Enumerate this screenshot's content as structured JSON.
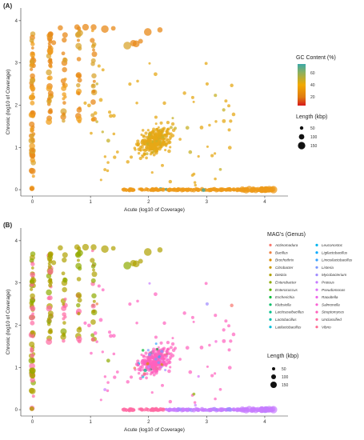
{
  "panels": [
    {
      "label": "(A)",
      "legend_color_title": "GC Content (%)",
      "legend_color_ticks": [
        "60",
        "40",
        "20"
      ],
      "legend_size_title": "Length (kbp)",
      "legend_size_ticks": [
        "50",
        "100",
        "150"
      ]
    },
    {
      "label": "(B)",
      "legend_color_title": "MAG's (Genus)",
      "legend_size_title": "Length (kbp)",
      "legend_size_ticks": [
        "50",
        "100",
        "150"
      ],
      "genera": [
        {
          "name": "Actinomadura",
          "color": "#F8766D"
        },
        {
          "name": "Bacillus",
          "color": "#EE8042"
        },
        {
          "name": "Brochothrix",
          "color": "#DE8C00"
        },
        {
          "name": "Citrobacter",
          "color": "#C99800"
        },
        {
          "name": "Dietzia",
          "color": "#AFA100"
        },
        {
          "name": "Enterobacter",
          "color": "#8EAB00"
        },
        {
          "name": "Enterococcus",
          "color": "#5BB300"
        },
        {
          "name": "Escherichia",
          "color": "#00BA38"
        },
        {
          "name": "Klebsiella",
          "color": "#00BE67"
        },
        {
          "name": "Lacticaseibacillus",
          "color": "#00C08B"
        },
        {
          "name": "Lactobacillus",
          "color": "#00C0AB"
        },
        {
          "name": "Latilactobacillus",
          "color": "#00BCD8"
        },
        {
          "name": "Leuconostoc",
          "color": "#00B4EF"
        },
        {
          "name": "Ligilactobacillus",
          "color": "#00A9FF"
        },
        {
          "name": "Limosilactobacillus",
          "color": "#35A2FF"
        },
        {
          "name": "Listeria",
          "color": "#7997FF"
        },
        {
          "name": "Mycobacterium",
          "color": "#9F8CFF"
        },
        {
          "name": "Proteus",
          "color": "#C77CFF"
        },
        {
          "name": "Pseudomonas",
          "color": "#DC71FA"
        },
        {
          "name": "Raoultella",
          "color": "#EE67EA"
        },
        {
          "name": "Salmonella",
          "color": "#FA62D4"
        },
        {
          "name": "Streptomyces",
          "color": "#FF61BD"
        },
        {
          "name": "Unclassified",
          "color": "#FF6AA2"
        },
        {
          "name": "Vibrio",
          "color": "#FF6C91"
        }
      ]
    }
  ],
  "chart_data": [
    {
      "type": "scatter",
      "title": "",
      "xlabel": "Acute (log10 of Coverage)",
      "ylabel": "Chronic (log10 of Coverage)",
      "xlim": [
        -0.2,
        4.4
      ],
      "ylim": [
        -0.15,
        4.3
      ],
      "xticks": [
        0,
        1,
        2,
        3,
        4
      ],
      "yticks": [
        0,
        1,
        2,
        3,
        4
      ],
      "color_scale": {
        "name": "GC Content (%)",
        "low": "#d7191c",
        "mid": "#f2a900",
        "high": "#3aa8a8"
      },
      "size_scale": {
        "name": "Length (kbp)",
        "values": [
          50,
          100,
          150
        ]
      },
      "grid": false,
      "legend": "right"
    },
    {
      "type": "scatter",
      "title": "",
      "xlabel": "Acute (log10 of Coverage)",
      "ylabel": "Chronic (log10 of Coverage)",
      "xlim": [
        -0.2,
        4.4
      ],
      "ylim": [
        -0.15,
        4.3
      ],
      "xticks": [
        0,
        1,
        2,
        3,
        4
      ],
      "yticks": [
        0,
        1,
        2,
        3,
        4
      ],
      "color_by": "MAG's (Genus)",
      "size_scale": {
        "name": "Length (kbp)",
        "values": [
          50,
          100,
          150
        ]
      },
      "grid": false,
      "legend": "right"
    }
  ]
}
